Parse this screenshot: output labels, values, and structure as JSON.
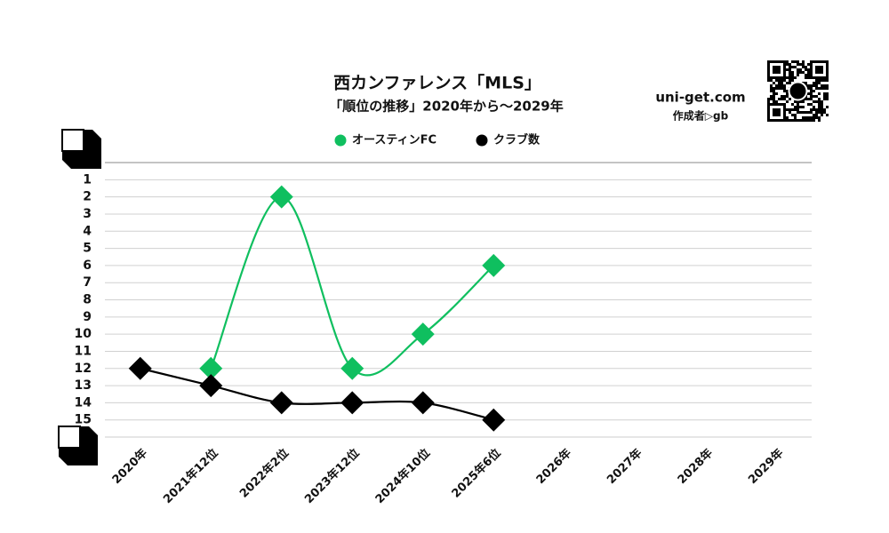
{
  "chart_data": {
    "type": "line",
    "title": "西カンファレンス「MLS」",
    "subtitle": "「順位の推移」2020年から～2029年",
    "site": "uni-get.com",
    "author": "作成者▷gb",
    "categories": [
      "2020年",
      "2021年12位",
      "2022年2位",
      "2023年12位",
      "2024年10位",
      "2025年6位",
      "2026年",
      "2027年",
      "2028年",
      "2029年"
    ],
    "series": [
      {
        "name": "オースティンFC",
        "color": "#0fbf5f",
        "values": [
          null,
          12,
          2,
          12,
          10,
          6,
          null,
          null,
          null,
          null
        ]
      },
      {
        "name": "クラブ数",
        "color": "#000000",
        "values": [
          12,
          13,
          14,
          14,
          14,
          15,
          null,
          null,
          null,
          null
        ]
      }
    ],
    "ylim": [
      0,
      16
    ],
    "inverted": true,
    "yticks": [
      1,
      2,
      3,
      4,
      5,
      6,
      7,
      8,
      9,
      10,
      11,
      12,
      13,
      14,
      15
    ],
    "grid": true,
    "legend": "top"
  }
}
